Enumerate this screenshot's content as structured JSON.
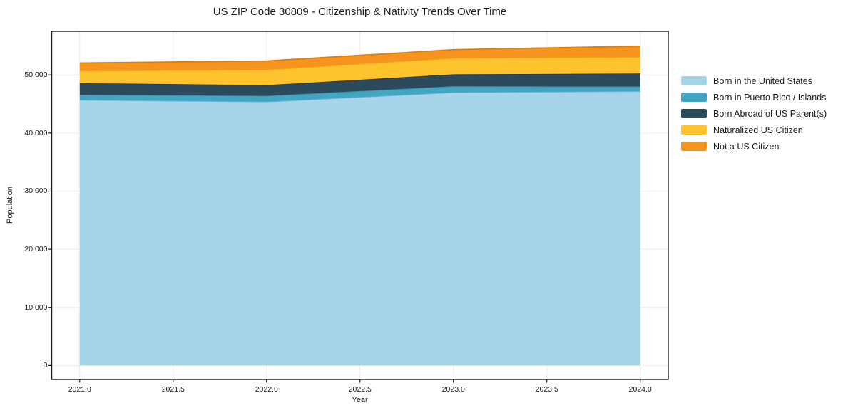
{
  "title": "US ZIP Code 30809 - Citizenship & Nativity Trends Over Time",
  "axes": {
    "xlabel": "Year",
    "ylabel": "Population"
  },
  "colors": {
    "background": "#ffffff",
    "axis": "#1a1a1a",
    "grid": "#ebebeb",
    "text": "#1a1a1a"
  },
  "chart_data": {
    "type": "area",
    "stacked": true,
    "title": "US ZIP Code 30809 - Citizenship & Nativity Trends Over Time",
    "xlabel": "Year",
    "ylabel": "Population",
    "x": [
      2021,
      2022,
      2023,
      2024
    ],
    "series": [
      {
        "name": "Born in the United States",
        "fill": "#a6d4e9",
        "line": "#6fb3d4",
        "values": [
          45700,
          45400,
          47000,
          47200
        ]
      },
      {
        "name": "Born in Puerto Rico / Islands",
        "fill": "#43a5c1",
        "line": "#2f93b0",
        "values": [
          900,
          1000,
          1050,
          800
        ]
      },
      {
        "name": "Born Abroad of US Parent(s)",
        "fill": "#2c4a5c",
        "line": "#1f3947",
        "values": [
          2000,
          1850,
          2050,
          2250
        ]
      },
      {
        "name": "Naturalized US Citizen",
        "fill": "#fdc42e",
        "line": "#f2a818",
        "values": [
          2100,
          2650,
          2800,
          2850
        ]
      },
      {
        "name": "Not a US Citizen",
        "fill": "#f7941e",
        "line": "#e07e0a",
        "values": [
          1350,
          1500,
          1450,
          1850
        ]
      }
    ],
    "xlim": [
      2020.85,
      2024.15
    ],
    "ylim": [
      -2400,
      57500
    ],
    "xticks": [
      2021.0,
      2021.5,
      2022.0,
      2022.5,
      2023.0,
      2023.5,
      2024.0
    ],
    "yticks": [
      0,
      10000,
      20000,
      30000,
      40000,
      50000
    ],
    "grid": true,
    "legend_position": "right-outside",
    "baseline": 0
  }
}
